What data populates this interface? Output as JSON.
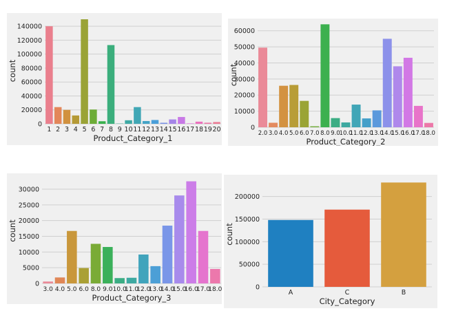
{
  "chart_data": [
    {
      "type": "bar",
      "xlabel": "Product_Category_1",
      "ylabel": "count",
      "ylim": [
        0,
        152000
      ],
      "yticks": [
        0,
        20000,
        40000,
        60000,
        80000,
        100000,
        120000,
        140000
      ],
      "ytick_labels": [
        "0",
        "20000",
        "40000",
        "60000",
        "80000",
        "100000",
        "120000",
        "140000"
      ],
      "grid": "horizontal",
      "categories": [
        "1",
        "2",
        "3",
        "4",
        "5",
        "6",
        "7",
        "8",
        "9",
        "10",
        "11",
        "12",
        "13",
        "14",
        "15",
        "16",
        "17",
        "18",
        "19",
        "20"
      ],
      "values": [
        140000,
        24000,
        20000,
        12000,
        150000,
        20500,
        3700,
        113000,
        400,
        5100,
        24000,
        4000,
        5500,
        1500,
        6300,
        9800,
        580,
        3100,
        1600,
        2550
      ],
      "colors": [
        "#ea7f8d",
        "#e3875a",
        "#d1913f",
        "#b59a36",
        "#9aa336",
        "#6dac37",
        "#39b14d",
        "#3bae7c",
        "#3dac94",
        "#3faaa5",
        "#41a7b5",
        "#44a4c6",
        "#4a9fd9",
        "#7891e5",
        "#a585e8",
        "#c879e6",
        "#e06ad8",
        "#ec71be",
        "#ec78a7",
        "#eb7c94"
      ]
    },
    {
      "type": "bar",
      "xlabel": "Product_Category_2",
      "ylabel": "count",
      "ylim": [
        0,
        65000
      ],
      "yticks": [
        0,
        10000,
        20000,
        30000,
        40000,
        50000,
        60000
      ],
      "ytick_labels": [
        "0",
        "10000",
        "20000",
        "30000",
        "40000",
        "50000",
        "60000"
      ],
      "grid": "horizontal",
      "categories": [
        "2.0",
        "3.0",
        "4.0",
        "5.0",
        "6.0",
        "7.0",
        "8.0",
        "9.0",
        "10.0",
        "11.0",
        "12.0",
        "13.0",
        "14.0",
        "15.0",
        "16.0",
        "17.0",
        "18.0"
      ],
      "values": [
        49500,
        2800,
        25800,
        26300,
        16400,
        600,
        64000,
        5700,
        3000,
        14100,
        5500,
        10500,
        55000,
        37900,
        43200,
        13300,
        2700
      ],
      "colors": [
        "#ea8a98",
        "#e38a5e",
        "#d39241",
        "#b89d37",
        "#9aa435",
        "#71ac37",
        "#3cb04f",
        "#3cad84",
        "#3ea9a1",
        "#41a6b7",
        "#449fc9",
        "#5b99dc",
        "#8c91ea",
        "#af88eb",
        "#d278e5",
        "#e874c9",
        "#ec78a8"
      ]
    },
    {
      "type": "bar",
      "xlabel": "Product_Category_3",
      "ylabel": "count",
      "ylim": [
        0,
        33500
      ],
      "yticks": [
        0,
        5000,
        10000,
        15000,
        20000,
        25000,
        30000
      ],
      "ytick_labels": [
        "0",
        "5000",
        "10000",
        "15000",
        "20000",
        "25000",
        "30000"
      ],
      "grid": "horizontal",
      "categories": [
        "3.0",
        "4.0",
        "5.0",
        "6.0",
        "8.0",
        "9.0",
        "10.0",
        "11.0",
        "12.0",
        "13.0",
        "14.0",
        "15.0",
        "16.0",
        "17.0",
        "18.0"
      ],
      "values": [
        600,
        1900,
        16700,
        4900,
        12600,
        11600,
        1700,
        1800,
        9200,
        5500,
        18400,
        28000,
        32500,
        16700,
        4600
      ],
      "colors": [
        "#ea8a98",
        "#e08757",
        "#c9973b",
        "#aaa035",
        "#7aab36",
        "#3bb05a",
        "#3cad84",
        "#3ea9a1",
        "#41a4bc",
        "#4c9fd6",
        "#7a96e8",
        "#a88bec",
        "#cc7de8",
        "#e574ce",
        "#ec78ac"
      ]
    },
    {
      "type": "bar",
      "xlabel": "City_Category",
      "ylabel": "count",
      "ylim": [
        0,
        233000
      ],
      "yticks": [
        0,
        50000,
        100000,
        150000,
        200000
      ],
      "ytick_labels": [
        "0",
        "50000",
        "100000",
        "150000",
        "200000"
      ],
      "grid": "horizontal",
      "categories": [
        "A",
        "C",
        "B"
      ],
      "values": [
        148000,
        171000,
        231000
      ],
      "colors": [
        "#1f80c1",
        "#e55b3c",
        "#d4a03f"
      ]
    }
  ]
}
